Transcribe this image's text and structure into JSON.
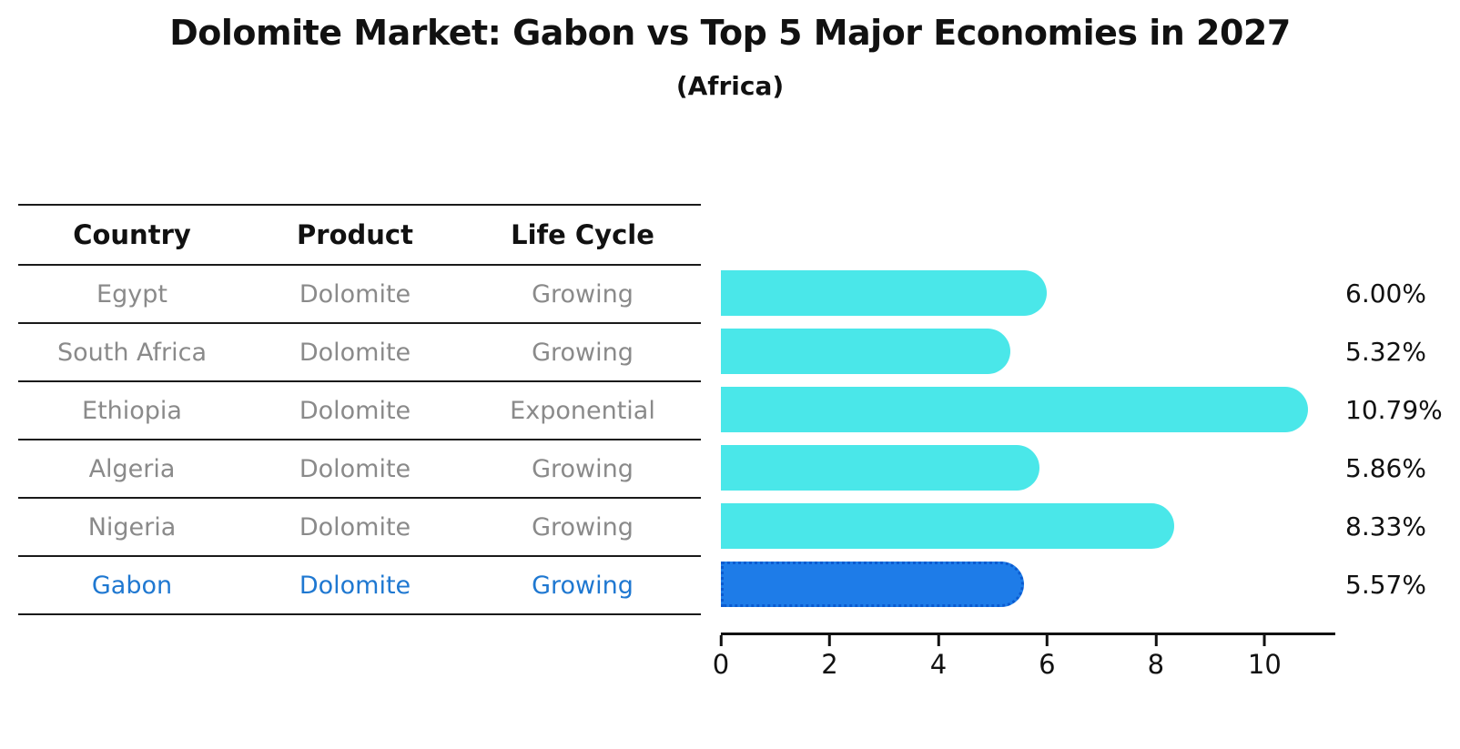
{
  "title": "Dolomite Market: Gabon vs Top 5 Major Economies in 2027",
  "subtitle": "(Africa)",
  "table": {
    "headers": [
      "Country",
      "Product",
      "Life Cycle"
    ],
    "rows": [
      {
        "country": "Egypt",
        "product": "Dolomite",
        "life_cycle": "Growing",
        "highlight": false
      },
      {
        "country": "South Africa",
        "product": "Dolomite",
        "life_cycle": "Growing",
        "highlight": false
      },
      {
        "country": "Ethiopia",
        "product": "Dolomite",
        "life_cycle": "Exponential",
        "highlight": false
      },
      {
        "country": "Algeria",
        "product": "Dolomite",
        "life_cycle": "Growing",
        "highlight": false
      },
      {
        "country": "Nigeria",
        "product": "Dolomite",
        "life_cycle": "Growing",
        "highlight": false
      },
      {
        "country": "Gabon",
        "product": "Dolomite",
        "life_cycle": "Growing",
        "highlight": true
      }
    ]
  },
  "chart_data": {
    "type": "bar",
    "orientation": "horizontal",
    "title": "Dolomite Market: Gabon vs Top 5 Major Economies in 2027",
    "subtitle": "(Africa)",
    "categories": [
      "Egypt",
      "South Africa",
      "Ethiopia",
      "Algeria",
      "Nigeria",
      "Gabon"
    ],
    "values": [
      6.0,
      5.32,
      10.79,
      5.86,
      8.33,
      5.57
    ],
    "value_labels": [
      "6.00%",
      "5.32%",
      "10.79%",
      "5.86%",
      "8.33%",
      "5.57%"
    ],
    "xlabel": "",
    "ylabel": "",
    "xlim": [
      0,
      11.3
    ],
    "x_ticks": [
      0,
      2,
      4,
      6,
      8,
      10
    ],
    "grid": false,
    "legend": "none",
    "highlight_index": 5,
    "bar_color": "#4ae7e9",
    "highlight_bar_color": "#1e7ce8"
  },
  "colors": {
    "bar": "#4ae7e9",
    "highlight_bar": "#1e7ce8",
    "highlight_edge": "#0b5bd0",
    "highlight_text": "#1f78d1",
    "table_text": "#8a8a8a",
    "heading_text": "#111111"
  }
}
